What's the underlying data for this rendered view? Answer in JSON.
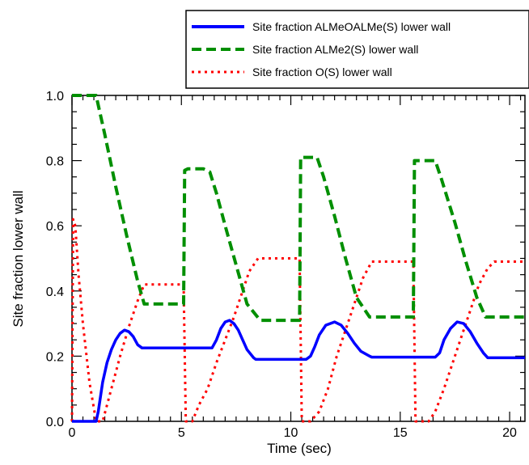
{
  "chart_data": {
    "type": "line",
    "title": "",
    "xlabel": "Time (sec)",
    "ylabel": "Site fraction lower wall",
    "xlim": [
      0,
      20.7
    ],
    "ylim": [
      0,
      1.0
    ],
    "xticks": [
      0,
      5,
      10,
      15,
      20
    ],
    "xtick_labels": [
      "0",
      "5",
      "10",
      "15",
      "20"
    ],
    "yticks": [
      0.0,
      0.2,
      0.4,
      0.6,
      0.8,
      1.0
    ],
    "ytick_labels": [
      "0.0",
      "0.2",
      "0.4",
      "0.6",
      "0.8",
      "1.0"
    ],
    "grid": false,
    "legend_position": "top-right",
    "series": [
      {
        "name": "Site fraction ALMeOALMe(S) lower wall",
        "color": "#0000ff",
        "style": "solid",
        "x": [
          0,
          1.1,
          1.2,
          1.4,
          1.6,
          1.8,
          2.0,
          2.2,
          2.4,
          2.6,
          2.8,
          3.0,
          3.2,
          6.4,
          6.6,
          6.8,
          7.0,
          7.2,
          7.4,
          7.6,
          7.8,
          8.0,
          8.3,
          8.4,
          10.7,
          10.9,
          11.1,
          11.3,
          11.6,
          12.0,
          12.3,
          12.6,
          12.9,
          13.2,
          13.6,
          13.7,
          16.6,
          16.8,
          17.0,
          17.3,
          17.6,
          17.9,
          18.2,
          18.5,
          18.8,
          19.0,
          20.7
        ],
        "y": [
          0,
          0,
          0.03,
          0.12,
          0.18,
          0.22,
          0.25,
          0.27,
          0.28,
          0.275,
          0.26,
          0.235,
          0.225,
          0.225,
          0.25,
          0.285,
          0.305,
          0.31,
          0.3,
          0.28,
          0.25,
          0.22,
          0.195,
          0.19,
          0.19,
          0.2,
          0.23,
          0.265,
          0.295,
          0.305,
          0.295,
          0.27,
          0.24,
          0.215,
          0.2,
          0.197,
          0.197,
          0.21,
          0.25,
          0.285,
          0.305,
          0.3,
          0.275,
          0.24,
          0.21,
          0.195,
          0.195
        ]
      },
      {
        "name": "Site fraction ALMe2(S) lower wall",
        "color": "#008f00",
        "style": "dashed",
        "x": [
          0,
          0.05,
          0.3,
          1.1,
          1.5,
          2.0,
          2.5,
          3.0,
          3.3,
          5.1,
          5.15,
          5.3,
          6.0,
          6.3,
          6.6,
          7.0,
          7.5,
          8.0,
          8.6,
          10.4,
          10.45,
          10.6,
          11.2,
          11.5,
          12.0,
          12.5,
          13.0,
          13.6,
          15.6,
          15.65,
          15.8,
          16.6,
          16.9,
          17.5,
          18.0,
          18.5,
          18.9,
          20.7
        ],
        "y": [
          1.0,
          1.0,
          1.0,
          1.0,
          0.88,
          0.72,
          0.57,
          0.43,
          0.36,
          0.36,
          0.77,
          0.775,
          0.775,
          0.765,
          0.7,
          0.6,
          0.48,
          0.36,
          0.31,
          0.31,
          0.81,
          0.81,
          0.81,
          0.75,
          0.63,
          0.5,
          0.38,
          0.32,
          0.32,
          0.8,
          0.8,
          0.8,
          0.74,
          0.61,
          0.49,
          0.38,
          0.32,
          0.32
        ]
      },
      {
        "name": "Site fraction O(S) lower wall",
        "color": "#ff0000",
        "style": "dotted",
        "x": [
          0,
          0.05,
          0.15,
          0.3,
          0.5,
          0.8,
          1.1,
          1.4,
          1.8,
          2.2,
          2.6,
          3.0,
          3.3,
          5.1,
          5.2,
          5.5,
          5.8,
          6.2,
          6.6,
          7.0,
          7.4,
          7.8,
          8.1,
          8.5,
          10.4,
          10.5,
          10.9,
          11.3,
          11.7,
          12.1,
          12.5,
          12.9,
          13.3,
          13.7,
          15.6,
          15.7,
          16.3,
          16.6,
          17.0,
          17.4,
          17.8,
          18.2,
          18.6,
          19.0,
          19.3,
          20.7
        ],
        "y": [
          0,
          0.62,
          0.6,
          0.45,
          0.3,
          0.12,
          0,
          0,
          0.1,
          0.2,
          0.29,
          0.37,
          0.42,
          0.42,
          0,
          0,
          0.05,
          0.1,
          0.18,
          0.25,
          0.32,
          0.4,
          0.46,
          0.5,
          0.5,
          0,
          0,
          0.03,
          0.1,
          0.2,
          0.28,
          0.36,
          0.44,
          0.49,
          0.49,
          0,
          0,
          0.03,
          0.1,
          0.18,
          0.26,
          0.34,
          0.42,
          0.47,
          0.49,
          0.49
        ]
      }
    ]
  }
}
